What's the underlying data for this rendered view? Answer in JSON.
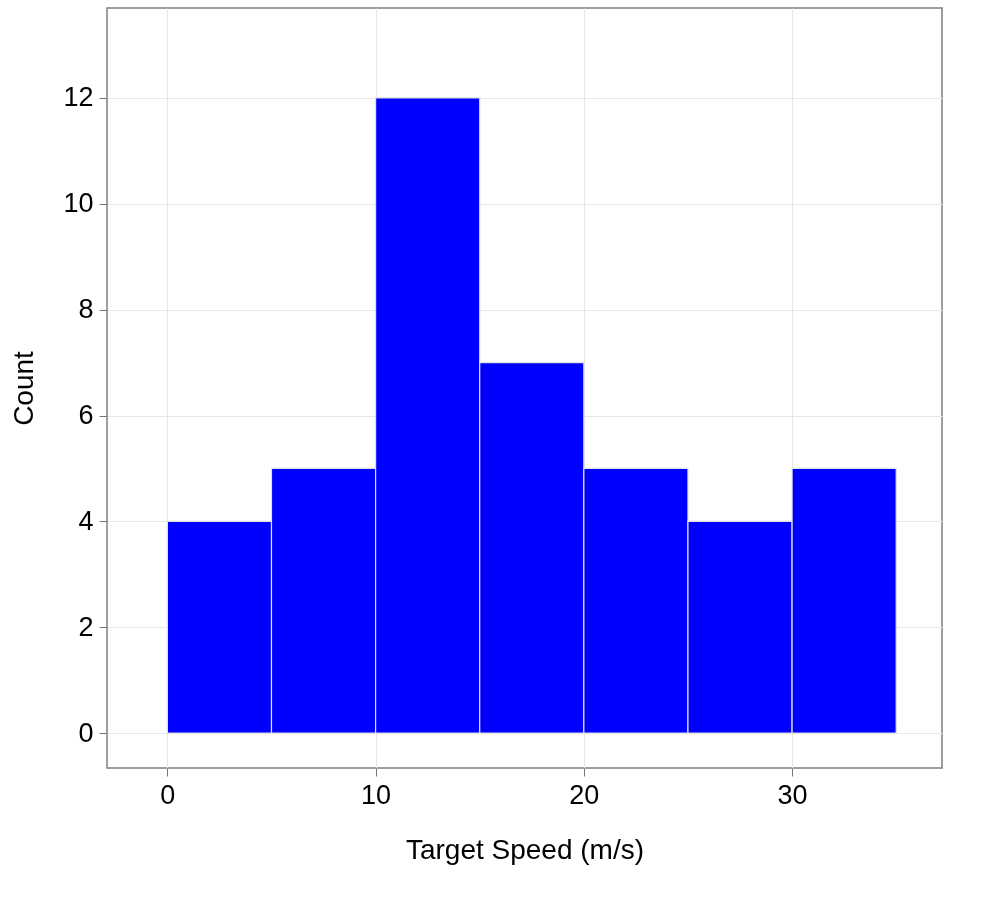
{
  "chart_data": {
    "type": "histogram",
    "xlabel": "Target Speed (m/s)",
    "ylabel": "Count",
    "bins": [
      0,
      5,
      10,
      15,
      20,
      25,
      30,
      35
    ],
    "values": [
      4,
      5,
      12,
      7,
      5,
      4,
      5
    ],
    "color": "#0000ff",
    "xlim": [
      -2.9,
      37.2
    ],
    "ylim": [
      -0.66,
      13.7
    ],
    "xticks": [
      0,
      10,
      20,
      30
    ],
    "yticks": [
      0,
      2,
      4,
      6,
      8,
      10,
      12
    ],
    "grid": true
  }
}
